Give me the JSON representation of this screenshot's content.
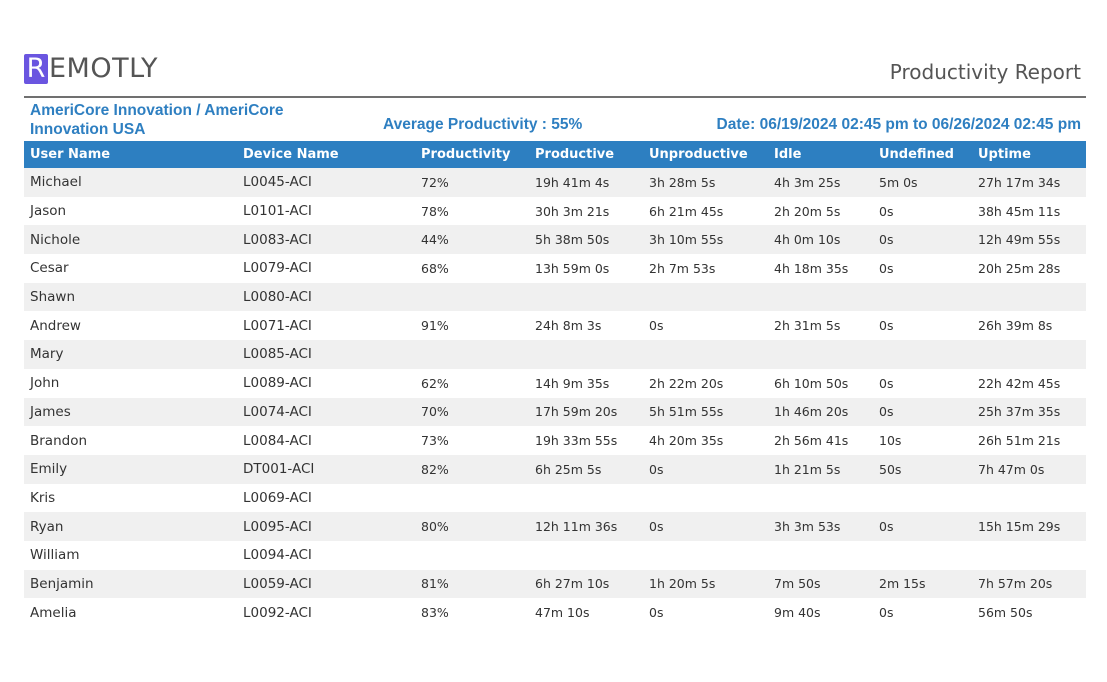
{
  "brand": {
    "logo_initial": "R",
    "logo_rest": "EMOTLY"
  },
  "report_title": "Productivity Report",
  "company": "AmeriCore Innovation / AmeriCore Innovation USA",
  "average_productivity": "Average Productivity : 55%",
  "date_range": "Date: 06/19/2024 02:45 pm to 06/26/2024 02:45 pm",
  "table": {
    "columns": [
      "User Name",
      "Device Name",
      "Productivity",
      "Productive",
      "Unproductive",
      "Idle",
      "Undefined",
      "Uptime"
    ],
    "rows": [
      [
        "Michael",
        "L0045-ACI",
        "72%",
        "19h 41m 4s",
        "3h 28m 5s",
        "4h 3m 25s",
        "5m 0s",
        "27h 17m 34s"
      ],
      [
        "Jason",
        "L0101-ACI",
        "78%",
        "30h 3m 21s",
        "6h 21m 45s",
        "2h 20m 5s",
        "0s",
        "38h 45m 11s"
      ],
      [
        "Nichole",
        "L0083-ACI",
        "44%",
        "5h 38m 50s",
        "3h 10m 55s",
        "4h 0m 10s",
        "0s",
        "12h 49m 55s"
      ],
      [
        "Cesar",
        "L0079-ACI",
        "68%",
        "13h 59m 0s",
        "2h 7m 53s",
        "4h 18m 35s",
        "0s",
        "20h 25m 28s"
      ],
      [
        "Shawn",
        "L0080-ACI",
        "",
        "",
        "",
        "",
        "",
        ""
      ],
      [
        "Andrew",
        "L0071-ACI",
        "91%",
        "24h 8m 3s",
        "0s",
        "2h 31m 5s",
        "0s",
        "26h 39m 8s"
      ],
      [
        "Mary",
        "L0085-ACI",
        "",
        "",
        "",
        "",
        "",
        ""
      ],
      [
        "John",
        "L0089-ACI",
        "62%",
        "14h 9m 35s",
        "2h 22m 20s",
        "6h 10m 50s",
        "0s",
        "22h 42m 45s"
      ],
      [
        "James",
        "L0074-ACI",
        "70%",
        "17h 59m 20s",
        "5h 51m 55s",
        "1h 46m 20s",
        "0s",
        "25h 37m 35s"
      ],
      [
        "Brandon",
        "L0084-ACI",
        "73%",
        "19h 33m 55s",
        "4h 20m 35s",
        "2h 56m 41s",
        "10s",
        "26h 51m 21s"
      ],
      [
        "Emily",
        "DT001-ACI",
        "82%",
        "6h 25m 5s",
        "0s",
        "1h 21m 5s",
        "50s",
        "7h 47m 0s"
      ],
      [
        "Kris",
        "L0069-ACI",
        "",
        "",
        "",
        "",
        "",
        ""
      ],
      [
        "Ryan",
        "L0095-ACI",
        "80%",
        "12h 11m 36s",
        "0s",
        "3h 3m 53s",
        "0s",
        "15h 15m 29s"
      ],
      [
        "William",
        "L0094-ACI",
        "",
        "",
        "",
        "",
        "",
        ""
      ],
      [
        "Benjamin",
        "L0059-ACI",
        "81%",
        "6h 27m 10s",
        "1h 20m 5s",
        "7m 50s",
        "2m 15s",
        "7h 57m 20s"
      ],
      [
        "Amelia",
        "L0092-ACI",
        "83%",
        "47m 10s",
        "0s",
        "9m 40s",
        "0s",
        "56m 50s"
      ]
    ]
  }
}
